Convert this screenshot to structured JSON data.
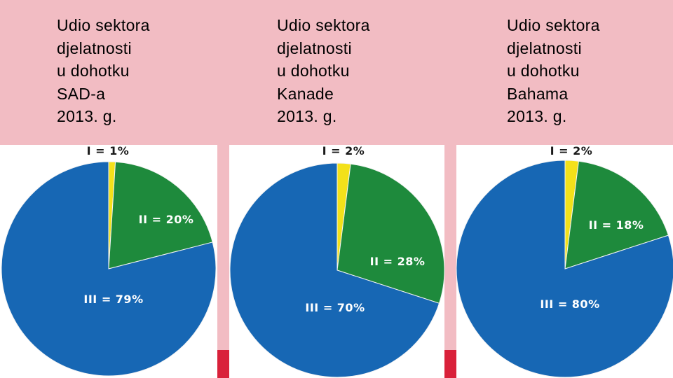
{
  "colors": {
    "header_bg": "#f2bcc3",
    "separator_red": "#d9213a",
    "sector_I": "#f3e11a",
    "sector_II": "#1e8a3c",
    "sector_III": "#1767b4"
  },
  "chart_data": [
    {
      "type": "pie",
      "title": "Udio sektora\ndjelatnosti\nu dohotku\nSAD-a\n2013. g.",
      "slices": [
        {
          "label": "I = 1%",
          "value": 1
        },
        {
          "label": "II = 20%",
          "value": 20
        },
        {
          "label": "III = 79%",
          "value": 79
        }
      ]
    },
    {
      "type": "pie",
      "title": "Udio sektora\ndjelatnosti\nu dohotku\nKanade\n2013. g.",
      "slices": [
        {
          "label": "I = 2%",
          "value": 2
        },
        {
          "label": "II = 28%",
          "value": 28
        },
        {
          "label": "III = 70%",
          "value": 70
        }
      ]
    },
    {
      "type": "pie",
      "title": "Udio sektora\ndjelatnosti\nu dohotku\nBahama\n2013. g.",
      "slices": [
        {
          "label": "I = 2%",
          "value": 2
        },
        {
          "label": "II = 18%",
          "value": 18
        },
        {
          "label": "III = 80%",
          "value": 80
        }
      ]
    }
  ]
}
